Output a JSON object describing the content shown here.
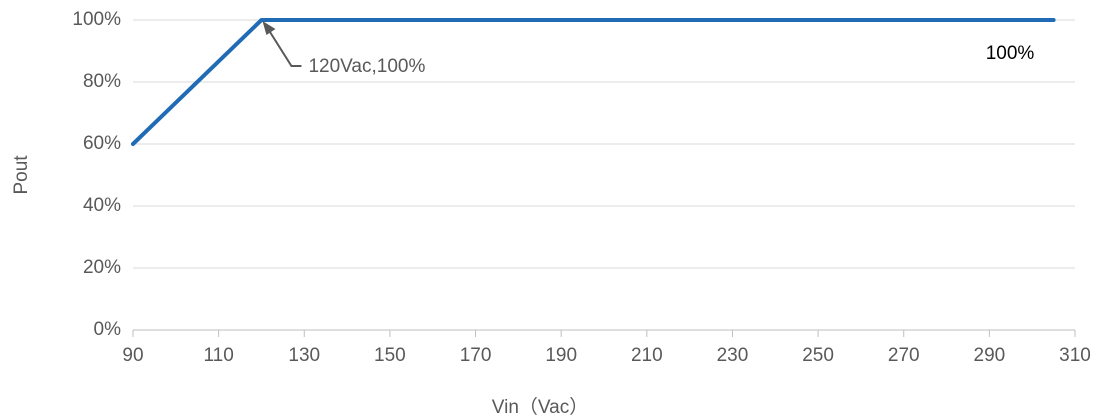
{
  "chart_data": {
    "type": "line",
    "x_label": "Vin（Vac）",
    "y_label": "Pout",
    "x": [
      90,
      120,
      305
    ],
    "series": [
      {
        "color": "#1f6bb5",
        "values": [
          60,
          100,
          100
        ]
      }
    ],
    "xlim": [
      90,
      310
    ],
    "xticks": [
      90,
      110,
      130,
      150,
      170,
      190,
      210,
      230,
      250,
      270,
      290,
      310
    ],
    "ylim": [
      0,
      100
    ],
    "yticks": [
      {
        "value": 0,
        "label": "0%"
      },
      {
        "value": 20,
        "label": "20%"
      },
      {
        "value": 40,
        "label": "40%"
      },
      {
        "value": 60,
        "label": "60%"
      },
      {
        "value": 80,
        "label": "80%"
      },
      {
        "value": 100,
        "label": "100%"
      }
    ],
    "grid": true,
    "annotations": [
      {
        "text": "120Vac,100%",
        "x": 120,
        "y": 100
      },
      {
        "text": "100%"
      }
    ]
  }
}
